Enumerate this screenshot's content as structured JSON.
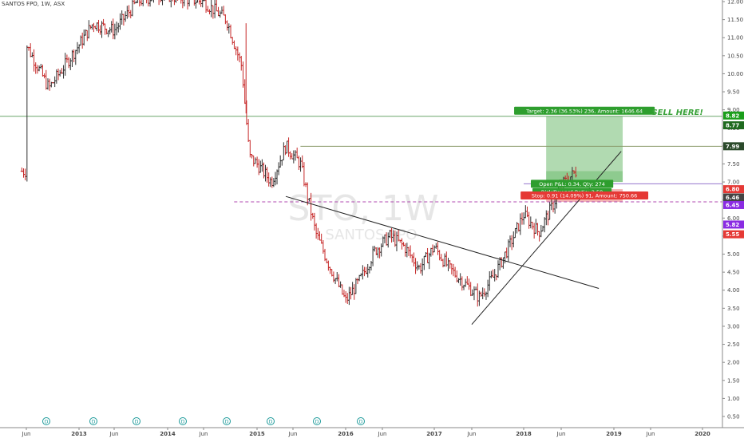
{
  "header": {
    "symbol_line": "SANTOS FPO, 1W, ASX"
  },
  "watermark": {
    "ticker": "STO, 1W",
    "name": "SANTOS FPO"
  },
  "annotation": {
    "sell_here": "SELL HERE!",
    "target_label": "Target: 2.36 (36.53%) 236, Amount: 1646.64",
    "open_pl_label": "Open P&L: 0.34, Qty: 274",
    "rr_label": "Risk/Reward Ratio: 2.59",
    "stop_label": "Stop: 0.91 (14.09%) 91, Amount: 750.66"
  },
  "price_badges": [
    {
      "value": "8.82",
      "color": "#1b9e1b"
    },
    {
      "value": "8.77",
      "color": "#1f6a1f"
    },
    {
      "value": "7.99",
      "color": "#2b4a2b"
    },
    {
      "value": "6.80",
      "color": "#e53935"
    },
    {
      "value": "6.46",
      "color": "#444444"
    },
    {
      "value": "6.45",
      "color": "#8a2be2"
    },
    {
      "value": "5.82",
      "color": "#8a2be2"
    },
    {
      "value": "5.55",
      "color": "#e53935"
    }
  ],
  "dividend_markers": [
    "D",
    "D",
    "D",
    "D",
    "D",
    "D",
    "D",
    "D"
  ],
  "colors": {
    "up": "#2e2e2e",
    "down": "#c62828",
    "target_zone": "#7dc17d",
    "stop_zone": "#ef9a9a",
    "sell_line": "#6aa56a",
    "resistance_line": "#8a9a6a",
    "purple_line": "#9575cd",
    "magenta_dash": "#b04ab0",
    "trendline": "#222222",
    "sell_text": "#3aa33a"
  },
  "chart_data": {
    "type": "ohlc",
    "title": "SANTOS FPO, 1W, ASX",
    "ylim": [
      0.25,
      12.1
    ],
    "y_ticks": [
      "0.50",
      "1.00",
      "1.50",
      "2.00",
      "2.50",
      "3.00",
      "3.50",
      "4.00",
      "4.50",
      "5.00",
      "5.50",
      "6.00",
      "6.50",
      "7.00",
      "7.50",
      "8.00",
      "8.50",
      "9.00",
      "9.50",
      "10.00",
      "10.50",
      "11.00",
      "11.50",
      "12.00"
    ],
    "x_ticks": [
      "Jun",
      "2013",
      "Jun",
      "2014",
      "Jun",
      "2015",
      "Jun",
      "2016",
      "Jun",
      "2017",
      "Jun",
      "2018",
      "Jun",
      "2019",
      "Jun",
      "2020"
    ],
    "approx_close_path": [
      [
        "2012-06",
        10.8
      ],
      [
        "2012-09",
        9.6
      ],
      [
        "2012-12",
        10.5
      ],
      [
        "2013-03",
        11.4
      ],
      [
        "2013-06",
        11.2
      ],
      [
        "2013-09",
        12.0
      ],
      [
        "2013-12",
        12.2
      ],
      [
        "2014-03",
        12.1
      ],
      [
        "2014-06",
        12.0
      ],
      [
        "2014-09",
        11.5
      ],
      [
        "2014-11",
        10.2
      ],
      [
        "2014-12",
        7.7
      ],
      [
        "2015-01",
        7.5
      ],
      [
        "2015-03",
        7.0
      ],
      [
        "2015-05",
        8.0
      ],
      [
        "2015-07",
        7.5
      ],
      [
        "2015-09",
        5.6
      ],
      [
        "2015-11",
        4.6
      ],
      [
        "2016-01",
        3.7
      ],
      [
        "2016-03",
        4.3
      ],
      [
        "2016-05",
        5.1
      ],
      [
        "2016-07",
        5.5
      ],
      [
        "2016-09",
        5.2
      ],
      [
        "2016-11",
        4.6
      ],
      [
        "2017-01",
        5.2
      ],
      [
        "2017-03",
        4.6
      ],
      [
        "2017-05",
        4.2
      ],
      [
        "2017-07",
        3.8
      ],
      [
        "2017-09",
        4.4
      ],
      [
        "2017-11",
        5.2
      ],
      [
        "2018-01",
        6.1
      ],
      [
        "2018-03",
        5.6
      ],
      [
        "2018-05",
        6.4
      ],
      [
        "2018-06",
        6.9
      ],
      [
        "2018-08",
        7.3
      ]
    ],
    "levels": {
      "sell_line": 8.82,
      "resistance": 7.99,
      "entry": 6.46,
      "stop": 5.55,
      "support_dashed": 6.45,
      "purple": 6.95,
      "target_top": 8.82,
      "target_bottom": 7.0,
      "stop_top": 6.8,
      "stop_bottom": 6.45
    },
    "trendlines": [
      {
        "from": [
          "2015-05",
          6.6
        ],
        "to": [
          "2018-11",
          4.05
        ]
      },
      {
        "from": [
          "2017-06",
          3.05
        ],
        "to": [
          "2019-02",
          7.85
        ]
      }
    ],
    "grid": false,
    "legend": "none"
  }
}
